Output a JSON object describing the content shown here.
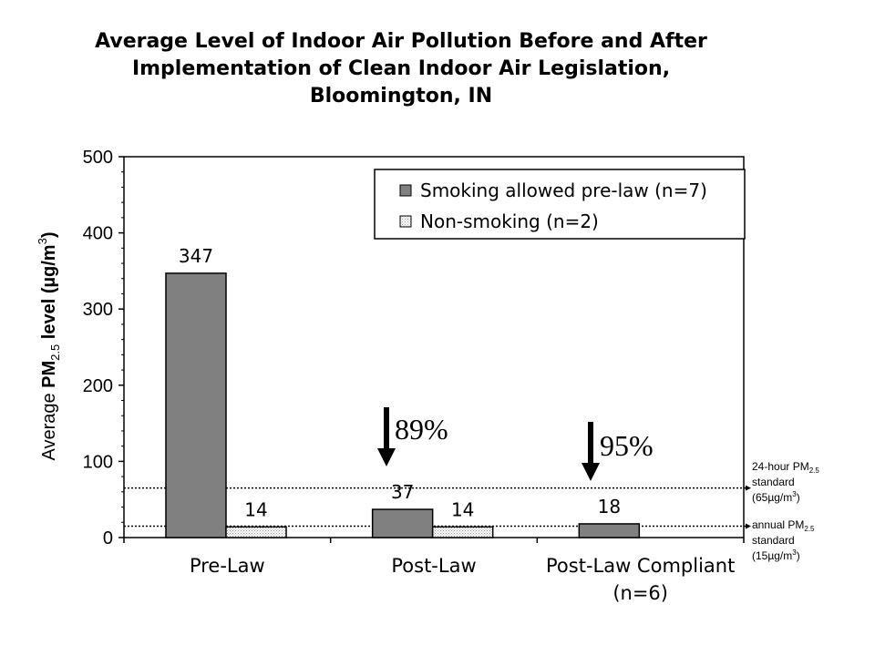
{
  "chart_data": {
    "type": "bar",
    "title_lines": [
      "Average Level of Indoor Air Pollution Before and After",
      "Implementation of Clean Indoor Air Legislation,",
      "Bloomington, IN"
    ],
    "ylabel": {
      "prefix": "Average ",
      "pm": "PM",
      "pm_sub": "2.5",
      "middle": " level (µg/m",
      "sup": "3",
      "suffix": ")"
    },
    "ylim": [
      0,
      500
    ],
    "yticks": [
      "0",
      "100",
      "200",
      "300",
      "400",
      "500"
    ],
    "categories": [
      "Pre-Law",
      "Post-Law",
      "Post-Law Compliant"
    ],
    "category_sublabels": [
      "",
      "",
      "(n=6)"
    ],
    "series": [
      {
        "name": "Smoking allowed pre-law (n=7)",
        "values": [
          347,
          37,
          18
        ],
        "color": "#808080"
      },
      {
        "name": "Non-smoking (n=2)",
        "values": [
          14,
          14,
          null
        ],
        "color": "#f0f0f0"
      }
    ],
    "data_labels": [
      [
        "347",
        "37",
        "18"
      ],
      [
        "14",
        "14",
        ""
      ]
    ],
    "legend_position": "top-right",
    "grid": false,
    "reductions": [
      {
        "category": "Post-Law",
        "label": "89%"
      },
      {
        "category": "Post-Law Compliant",
        "label": "95%"
      }
    ],
    "reference_lines": [
      {
        "value": 65,
        "line1_prefix": "24-hour PM",
        "line1_sub": "2.5",
        "line2": "standard",
        "line3_prefix": "(65µg/m",
        "line3_sup": "3",
        "line3_suffix": ")"
      },
      {
        "value": 15,
        "line1_prefix": "annual PM",
        "line1_sub": "2.5",
        "line2": "standard",
        "line3_prefix": "(15µg/m",
        "line3_sup": "3",
        "line3_suffix": ")"
      }
    ]
  }
}
